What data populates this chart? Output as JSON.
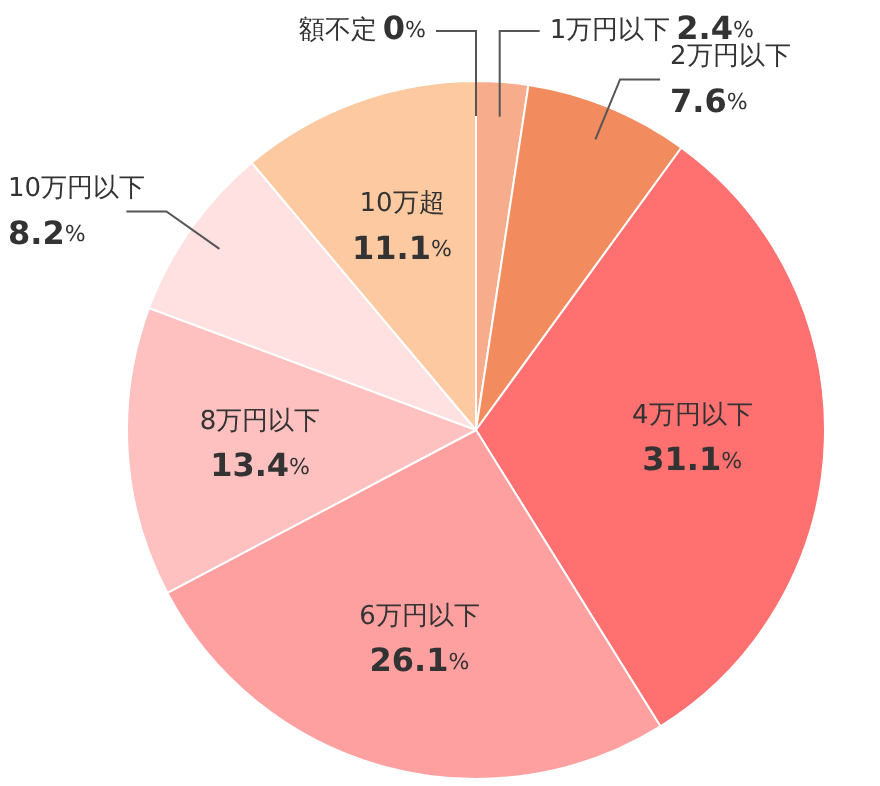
{
  "chart_data": {
    "type": "pie",
    "categories": [
      "額不定",
      "1万円以下",
      "2万円以下",
      "4万円以下",
      "6万円以下",
      "8万円以下",
      "10万円以下",
      "10万超"
    ],
    "values": [
      0,
      2.4,
      7.6,
      31.1,
      26.1,
      13.4,
      8.2,
      11.1
    ],
    "colors": [
      "#f7b08f",
      "#f7ad8c",
      "#f28b5e",
      "#ff7070",
      "#ffa0a0",
      "#ffc0c0",
      "#ffe1e1",
      "#fcc9a0"
    ],
    "value_labels": [
      "0%",
      "2.4%",
      "7.6%",
      "31.1%",
      "26.1%",
      "13.4%",
      "8.2%",
      "11.1%"
    ],
    "legend": false
  }
}
